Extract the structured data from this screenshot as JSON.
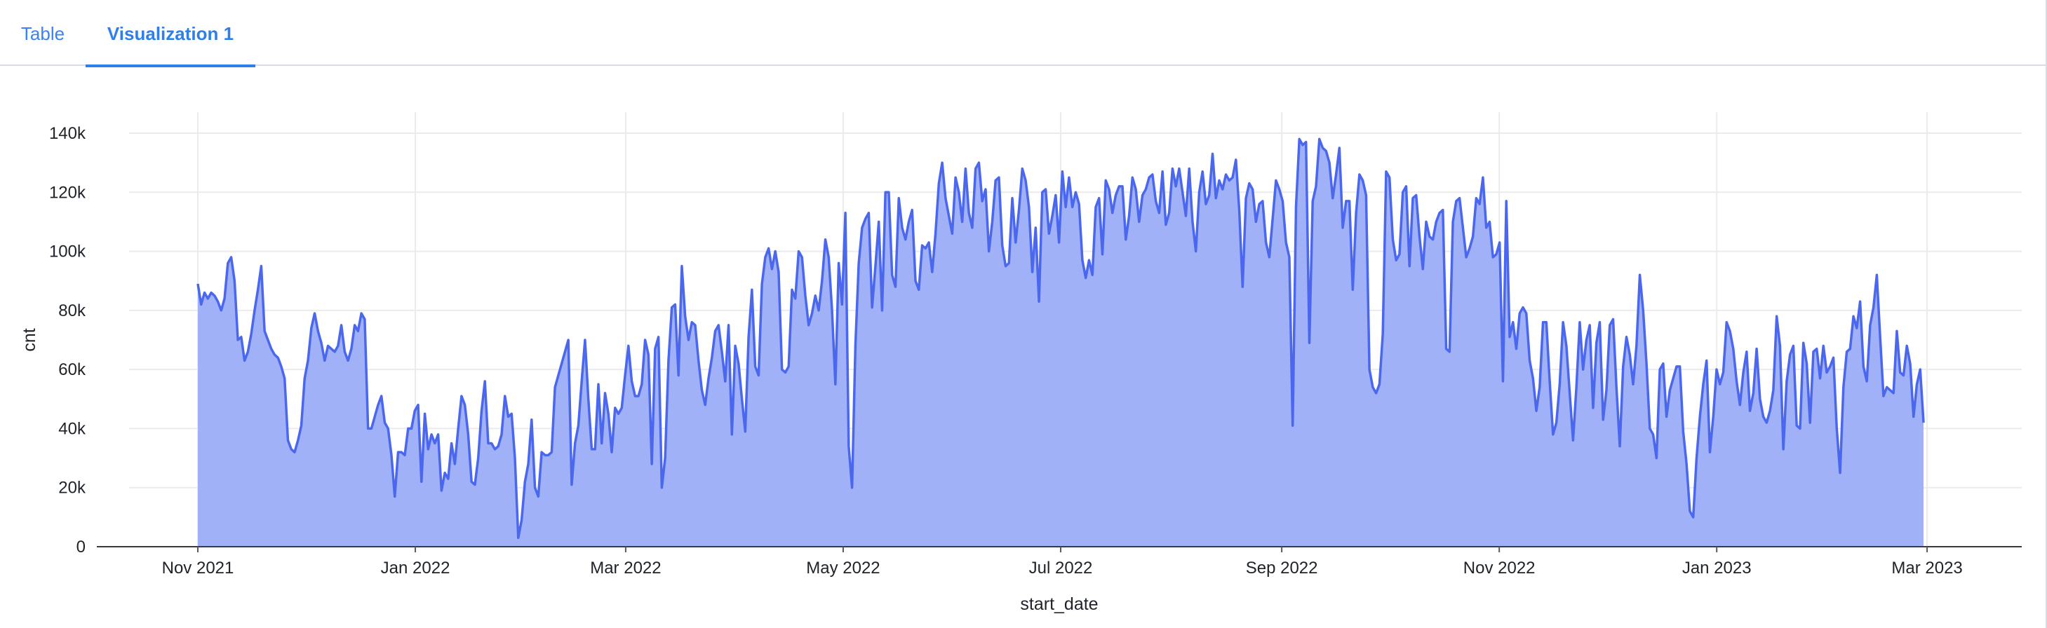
{
  "tabs": [
    {
      "label": "Table",
      "active": false
    },
    {
      "label": "Visualization 1",
      "active": true
    }
  ],
  "colors": {
    "series_line": "#4a67ee",
    "series_fill": "#a0b1f7",
    "grid": "#ebebeb",
    "tab_accent": "#2f7fe8"
  },
  "chart_data": {
    "type": "area",
    "xlabel": "start_date",
    "ylabel": "cnt",
    "ylim": [
      0,
      140000
    ],
    "y_ticks": [
      0,
      20000,
      40000,
      60000,
      80000,
      100000,
      120000,
      140000
    ],
    "y_tick_labels": [
      "0",
      "20k",
      "40k",
      "60k",
      "80k",
      "100k",
      "120k",
      "140k"
    ],
    "x_ticks": [
      "2021-11-01",
      "2022-01-01",
      "2022-03-01",
      "2022-05-01",
      "2022-07-01",
      "2022-09-01",
      "2022-11-01",
      "2023-01-01",
      "2023-03-01"
    ],
    "x_tick_labels": [
      "Nov 2021",
      "Jan 2022",
      "Mar 2022",
      "May 2022",
      "Jul 2022",
      "Sep 2022",
      "Nov 2022",
      "Jan 2023",
      "Mar 2023"
    ],
    "grid": true,
    "legend": "none",
    "start_date": "2021-11-01",
    "end_date": "2023-02-28",
    "series": [
      {
        "values": [
          89000,
          82000,
          86000,
          84000,
          86000,
          85000,
          83000,
          80000,
          84000,
          96000,
          98000,
          90000,
          70000,
          71000,
          63000,
          66000,
          72000,
          80000,
          87000,
          95000,
          73000,
          70000,
          67000,
          65000,
          64000,
          61000,
          57000,
          36000,
          33000,
          32000,
          36000,
          41000,
          57000,
          63000,
          74000,
          79000,
          73000,
          69000,
          63000,
          68000,
          67000,
          66000,
          68000,
          75000,
          66000,
          63000,
          67000,
          75000,
          73000,
          79000,
          77000,
          40000,
          40000,
          44000,
          48000,
          51000,
          42000,
          40000,
          31000,
          17000,
          32000,
          32000,
          31000,
          40000,
          40000,
          46000,
          48000,
          22000,
          45000,
          33000,
          38000,
          35000,
          38000,
          19000,
          25000,
          23000,
          35000,
          28000,
          40000,
          51000,
          48000,
          38000,
          22000,
          21000,
          30000,
          46000,
          56000,
          35000,
          35000,
          33000,
          34000,
          38000,
          51000,
          44000,
          45000,
          30000,
          3000,
          9000,
          22000,
          28000,
          43000,
          20000,
          17000,
          32000,
          31000,
          31000,
          32000,
          54000,
          58000,
          62000,
          66000,
          70000,
          21000,
          35000,
          41000,
          56000,
          70000,
          50000,
          33000,
          33000,
          55000,
          35000,
          52000,
          45000,
          32000,
          47000,
          45000,
          47000,
          58000,
          68000,
          56000,
          51000,
          51000,
          55000,
          70000,
          65000,
          28000,
          67000,
          71000,
          20000,
          30000,
          63000,
          81000,
          82000,
          58000,
          95000,
          78000,
          70000,
          76000,
          75000,
          63000,
          53000,
          48000,
          57000,
          64000,
          73000,
          75000,
          66000,
          56000,
          75000,
          38000,
          68000,
          62000,
          50000,
          39000,
          71000,
          87000,
          61000,
          58000,
          89000,
          98000,
          101000,
          94000,
          100000,
          93000,
          60000,
          59000,
          61000,
          87000,
          84000,
          100000,
          98000,
          85000,
          75000,
          79000,
          85000,
          80000,
          90000,
          104000,
          98000,
          80000,
          55000,
          96000,
          82000,
          113000,
          34000,
          20000,
          68000,
          96000,
          108000,
          111000,
          113000,
          81000,
          95000,
          110000,
          80000,
          120000,
          120000,
          92000,
          88000,
          118000,
          108000,
          104000,
          110000,
          114000,
          90000,
          87000,
          102000,
          101000,
          103000,
          93000,
          106000,
          123000,
          130000,
          118000,
          112000,
          106000,
          125000,
          120000,
          110000,
          128000,
          113000,
          108000,
          128000,
          130000,
          117000,
          121000,
          100000,
          110000,
          124000,
          125000,
          102000,
          95000,
          96000,
          118000,
          103000,
          114000,
          128000,
          124000,
          115000,
          93000,
          108000,
          83000,
          120000,
          121000,
          106000,
          112000,
          119000,
          103000,
          127000,
          115000,
          125000,
          115000,
          120000,
          116000,
          97000,
          91000,
          97000,
          92000,
          115000,
          118000,
          99000,
          124000,
          121000,
          113000,
          119000,
          122000,
          122000,
          104000,
          112000,
          125000,
          121000,
          110000,
          119000,
          121000,
          125000,
          126000,
          117000,
          113000,
          127000,
          109000,
          113000,
          128000,
          122000,
          128000,
          120000,
          112000,
          128000,
          110000,
          100000,
          120000,
          127000,
          116000,
          119000,
          133000,
          118000,
          124000,
          121000,
          126000,
          124000,
          125000,
          131000,
          114000,
          88000,
          118000,
          123000,
          121000,
          110000,
          116000,
          117000,
          103000,
          98000,
          111000,
          124000,
          121000,
          117000,
          103000,
          98000,
          41000,
          115000,
          138000,
          136000,
          137000,
          69000,
          117000,
          122000,
          138000,
          135000,
          134000,
          130000,
          118000,
          126000,
          135000,
          108000,
          117000,
          117000,
          87000,
          113000,
          126000,
          124000,
          119000,
          60000,
          54000,
          52000,
          55000,
          72000,
          127000,
          125000,
          104000,
          97000,
          99000,
          120000,
          122000,
          95000,
          118000,
          119000,
          105000,
          94000,
          110000,
          105000,
          104000,
          110000,
          113000,
          114000,
          67000,
          66000,
          110000,
          117000,
          118000,
          108000,
          98000,
          101000,
          105000,
          118000,
          116000,
          125000,
          108000,
          110000,
          98000,
          99000,
          103000,
          56000,
          117000,
          71000,
          76000,
          67000,
          79000,
          81000,
          79000,
          63000,
          57000,
          46000,
          54000,
          76000,
          76000,
          56000,
          38000,
          42000,
          55000,
          76000,
          68000,
          52000,
          36000,
          54000,
          76000,
          60000,
          70000,
          75000,
          47000,
          69000,
          76000,
          43000,
          53000,
          75000,
          77000,
          54000,
          34000,
          61000,
          71000,
          65000,
          55000,
          68000,
          92000,
          80000,
          62000,
          40000,
          38000,
          30000,
          60000,
          62000,
          44000,
          53000,
          57000,
          61000,
          61000,
          39000,
          28000,
          12000,
          10000,
          30000,
          44000,
          55000,
          63000,
          32000,
          44000,
          60000,
          55000,
          59000,
          76000,
          73000,
          67000,
          56000,
          48000,
          59000,
          66000,
          46000,
          52000,
          67000,
          50000,
          44000,
          42000,
          46000,
          53000,
          78000,
          68000,
          33000,
          56000,
          65000,
          68000,
          41000,
          40000,
          69000,
          62000,
          42000,
          66000,
          67000,
          57000,
          68000,
          59000,
          61000,
          64000,
          40000,
          25000,
          54000,
          66000,
          67000,
          78000,
          74000,
          83000,
          61000,
          56000,
          75000,
          81000,
          92000,
          71000,
          51000,
          54000,
          53000,
          52000,
          73000,
          59000,
          58000,
          68000,
          62000,
          44000,
          55000,
          60000,
          42000
        ]
      }
    ]
  }
}
